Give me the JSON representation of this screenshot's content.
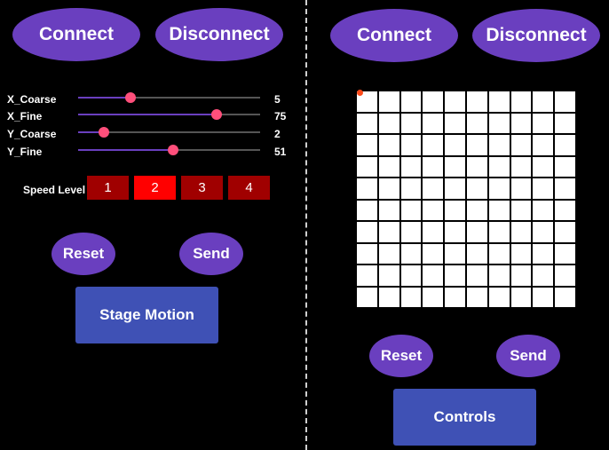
{
  "left_panel": {
    "connect_label": "Connect",
    "disconnect_label": "Disconnect",
    "sliders": [
      {
        "label": "X_Coarse",
        "value": "5",
        "fraction": 0.29
      },
      {
        "label": "X_Fine",
        "value": "75",
        "fraction": 0.76
      },
      {
        "label": "Y_Coarse",
        "value": "2",
        "fraction": 0.14
      },
      {
        "label": "Y_Fine",
        "value": "51",
        "fraction": 0.52
      }
    ],
    "speed_level_label": "Speed Level",
    "speed_levels": [
      "1",
      "2",
      "3",
      "4"
    ],
    "selected_speed": "2",
    "reset_label": "Reset",
    "send_label": "Send",
    "stage_motion_label": "Stage Motion"
  },
  "right_panel": {
    "connect_label": "Connect",
    "disconnect_label": "Disconnect",
    "grid": {
      "rows": 10,
      "cols": 10,
      "marker": {
        "row": 0,
        "col": 0
      }
    },
    "reset_label": "Reset",
    "send_label": "Send",
    "controls_label": "Controls"
  },
  "colors": {
    "background": "#000000",
    "pill_button": "#6a3fbf",
    "rect_button": "#3f51b5",
    "slider_thumb": "#ff4f7b",
    "speed_button": "#a00000",
    "speed_button_active": "#ff0000",
    "marker": "#ff4a1a"
  }
}
